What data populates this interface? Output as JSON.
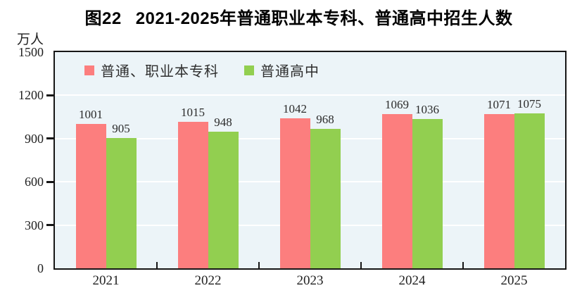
{
  "chart_data": {
    "type": "bar",
    "fig_label": "图22",
    "title_text": "2021-2025年普通职业本专科、普通高中招生人数",
    "unit": "万人",
    "categories": [
      "2021",
      "2022",
      "2023",
      "2024",
      "2025"
    ],
    "series": [
      {
        "name": "普通、职业本专科",
        "color": "#fc7e7e",
        "values": [
          1001,
          1015,
          1042,
          1069,
          1071
        ]
      },
      {
        "name": "普通高中",
        "color": "#92cf50",
        "values": [
          905,
          948,
          968,
          1036,
          1075
        ]
      }
    ],
    "ylim": [
      0,
      1500
    ],
    "yticks": [
      0,
      300,
      600,
      900,
      1200,
      1500
    ],
    "grid": true,
    "gridline_color": "#ffffff",
    "plot_bg_color": "#ecf4f8",
    "axis_color": "#161616",
    "legend_position": "top-left",
    "value_labels": true
  }
}
